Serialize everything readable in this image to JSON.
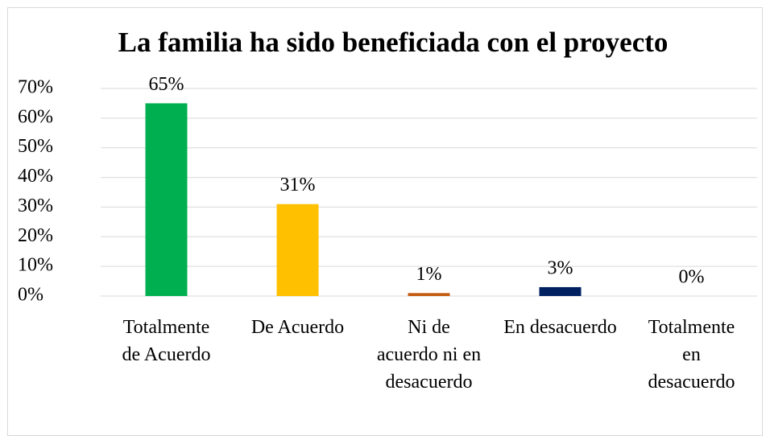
{
  "chart_data": {
    "type": "bar",
    "title": "La familia ha sido beneficiada con el proyecto",
    "categories": [
      "Totalmente de Acuerdo",
      "De Acuerdo",
      "Ni de acuerdo ni en desacuerdo",
      "En desacuerdo",
      "Totalmente en desacuerdo"
    ],
    "values": [
      65,
      31,
      1,
      3,
      0
    ],
    "value_labels": [
      "65%",
      "31%",
      "1%",
      "3%",
      "0%"
    ],
    "colors": [
      "#00b050",
      "#ffc000",
      "#c55a11",
      "#002060",
      "#7030a0"
    ],
    "ylim": [
      0,
      70
    ],
    "yticks": [
      {
        "value": 0,
        "label": "0%"
      },
      {
        "value": 10,
        "label": "10%"
      },
      {
        "value": 20,
        "label": "20%"
      },
      {
        "value": 30,
        "label": "30%"
      },
      {
        "value": 40,
        "label": "40%"
      },
      {
        "value": 50,
        "label": "50%"
      },
      {
        "value": 60,
        "label": "60%"
      },
      {
        "value": 70,
        "label": "70%"
      }
    ],
    "grid": true
  }
}
